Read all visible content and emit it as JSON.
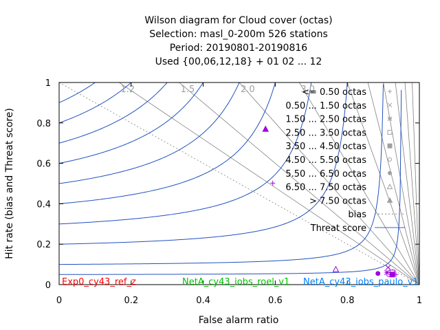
{
  "chart_data": {
    "type": "scatter",
    "title_lines": [
      "Wilson diagram  for Cloud cover (octas)",
      "Selection: masl_0-200m    526 stations",
      "Period: 20190801-20190816",
      "Used {00,06,12,18} + 01 02 ... 12"
    ],
    "xlabel": "False alarm ratio",
    "ylabel": "Hit rate (bias and Threat score)",
    "xlim": [
      0,
      1
    ],
    "ylim": [
      0,
      1
    ],
    "x_ticks": [
      0,
      0.2,
      0.4,
      0.6,
      0.8,
      1
    ],
    "x_tick_labels": [
      "0",
      "0.2",
      "0.4",
      "0.6",
      "0.8",
      "1"
    ],
    "y_ticks": [
      0,
      0.2,
      0.4,
      0.6,
      0.8,
      1
    ],
    "y_tick_labels": [
      "0",
      "0.2",
      "0.4",
      "0.6",
      "0.8",
      "1"
    ],
    "bias_values": [
      1.2,
      1.5,
      2.0,
      3.0,
      5,
      7,
      10,
      15,
      25,
      50
    ],
    "bias_labels": [
      {
        "bias": 1.2,
        "text": "1.2"
      },
      {
        "bias": 1.5,
        "text": "1.5"
      },
      {
        "bias": 2.0,
        "text": "2.0"
      },
      {
        "bias": 3.0,
        "text": "3.0"
      }
    ],
    "threat_score_values": [
      0.05,
      0.1,
      0.2,
      0.3,
      0.4,
      0.5,
      0.6,
      0.7,
      0.8,
      0.9
    ],
    "legend": [
      {
        "label": "<= 0.50 octas",
        "symbol": "plus"
      },
      {
        "label": "0.50 ... 1.50 octas",
        "symbol": "cross"
      },
      {
        "label": "1.50 ... 2.50 octas",
        "symbol": "star"
      },
      {
        "label": "2.50 ... 3.50 octas",
        "symbol": "square-open"
      },
      {
        "label": "3.50 ... 4.50 octas",
        "symbol": "square-filled"
      },
      {
        "label": "4.50 ... 5.50 octas",
        "symbol": "circle-open"
      },
      {
        "label": "5.50 ... 6.50 octas",
        "symbol": "circle-filled"
      },
      {
        "label": "6.50 ... 7.50 octas",
        "symbol": "triangle-open"
      },
      {
        "label": "> 7.50 octas",
        "symbol": "triangle-filled"
      },
      {
        "label": "bias",
        "symbol": "dotted-line"
      },
      {
        "label": "Threat score",
        "symbol": "solid-line"
      }
    ],
    "experiments": [
      {
        "name": "Exp0_cy43_ref_z",
        "color": "#ff0000"
      },
      {
        "name": "NetA_cy43_iobs_roel_v1",
        "color": "#00c000"
      },
      {
        "name": "NetA_cy43_iobs_paulo_v1",
        "color": "#0080ff"
      }
    ],
    "series": [
      {
        "experiment": "Exp0_cy43_ref_z",
        "color": "#a000e0",
        "points": [
          {
            "x": 0.913,
            "y": 0.085,
            "symbol": "cross"
          },
          {
            "x": 0.91,
            "y": 0.06,
            "symbol": "star"
          },
          {
            "x": 0.925,
            "y": 0.06,
            "symbol": "square-open"
          },
          {
            "x": 0.925,
            "y": 0.05,
            "symbol": "square-filled"
          },
          {
            "x": 0.915,
            "y": 0.05,
            "symbol": "circle-open"
          },
          {
            "x": 0.885,
            "y": 0.055,
            "symbol": "circle-filled"
          },
          {
            "x": 0.768,
            "y": 0.076,
            "symbol": "triangle-open"
          },
          {
            "x": 0.573,
            "y": 0.77,
            "symbol": "triangle-filled"
          },
          {
            "x": 0.593,
            "y": 0.502,
            "symbol": "plus"
          },
          {
            "x": 0.935,
            "y": 0.05,
            "symbol": "plus"
          }
        ]
      }
    ],
    "colors": {
      "threat_line": "#2050c0",
      "bias_line": "#808080",
      "marker": "#a000e0",
      "legend_threat": "#3060d0"
    }
  }
}
